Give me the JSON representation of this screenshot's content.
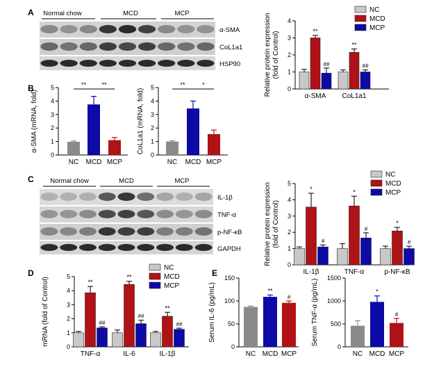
{
  "panels": {
    "A": "A",
    "B": "B",
    "C": "C",
    "D": "D",
    "E": "E"
  },
  "colors": {
    "NC": "#c8c8c8",
    "MCD": "#b01217",
    "MCP": "#0d0aa8",
    "grey": "#8a8a8a",
    "blue": "#0d0aa8",
    "red": "#b01217"
  },
  "blots": {
    "A": {
      "groups": [
        "Normal chow",
        "MCD",
        "MCP"
      ],
      "bands": [
        "α-SMA",
        "CoL1a1",
        "HSP90"
      ]
    },
    "C": {
      "groups": [
        "Normal chow",
        "MCD",
        "MCP"
      ],
      "bands": [
        "IL-1β",
        "TNF-α",
        "p-NF-κB",
        "GAPDH"
      ]
    }
  },
  "chart_data": [
    {
      "id": "A-bar",
      "type": "bar",
      "ylabel": "Relative protein expression\n(fold of Control)",
      "ylim": [
        0,
        4
      ],
      "yticks": [
        0,
        1,
        2,
        3,
        4
      ],
      "categories": [
        "α-SMA",
        "CoL1a1"
      ],
      "legend": [
        "NC",
        "MCD",
        "MCP"
      ],
      "series": [
        {
          "name": "NC",
          "values": [
            1.0,
            1.0
          ],
          "err": [
            0.15,
            0.12
          ],
          "ann": [
            "",
            ""
          ]
        },
        {
          "name": "MCD",
          "values": [
            3.0,
            2.15
          ],
          "err": [
            0.15,
            0.2
          ],
          "ann": [
            "**",
            "**"
          ]
        },
        {
          "name": "MCP",
          "values": [
            0.93,
            1.0
          ],
          "err": [
            0.3,
            0.12
          ],
          "ann": [
            "##",
            "##"
          ]
        }
      ]
    },
    {
      "id": "B-left",
      "type": "bar",
      "ylabel": "α-SMA (mRNA, fold)",
      "ylim": [
        0,
        5
      ],
      "yticks": [
        0,
        1,
        2,
        3,
        4,
        5
      ],
      "categories": [
        "NC",
        "MCD",
        "MCP"
      ],
      "values": [
        0.98,
        3.75,
        1.1
      ],
      "err": [
        0.06,
        0.6,
        0.2
      ],
      "bar_colors": [
        "grey",
        "blue",
        "red"
      ],
      "sig": [
        {
          "from": 0,
          "to": 1,
          "text": "**"
        },
        {
          "from": 1,
          "to": 2,
          "text": "**"
        }
      ]
    },
    {
      "id": "B-right",
      "type": "bar",
      "ylabel": "CoL1a1 (mRNA, fold)",
      "ylim": [
        0,
        5
      ],
      "yticks": [
        0,
        1,
        2,
        3,
        4,
        5
      ],
      "categories": [
        "NC",
        "MCD",
        "MCP"
      ],
      "values": [
        1.0,
        3.45,
        1.55
      ],
      "err": [
        0.06,
        0.55,
        0.3
      ],
      "bar_colors": [
        "grey",
        "blue",
        "red"
      ],
      "sig": [
        {
          "from": 0,
          "to": 1,
          "text": "**"
        },
        {
          "from": 1,
          "to": 2,
          "text": "*"
        }
      ]
    },
    {
      "id": "C-bar",
      "type": "bar",
      "ylabel": "Relative protein expression\n(fold of Control)",
      "ylim": [
        0,
        5
      ],
      "yticks": [
        0,
        1,
        2,
        3,
        4,
        5
      ],
      "categories": [
        "IL-1β",
        "TNF-α",
        "p-NF-κB"
      ],
      "legend": [
        "NC",
        "MCD",
        "MCP"
      ],
      "series": [
        {
          "name": "NC",
          "values": [
            1.0,
            1.0,
            1.0
          ],
          "err": [
            0.1,
            0.3,
            0.15
          ],
          "ann": [
            "",
            "",
            ""
          ]
        },
        {
          "name": "MCD",
          "values": [
            3.55,
            3.62,
            2.08
          ],
          "err": [
            0.85,
            0.6,
            0.22
          ],
          "ann": [
            "*",
            "*",
            "*"
          ]
        },
        {
          "name": "MCP",
          "values": [
            1.1,
            1.65,
            1.0
          ],
          "err": [
            0.12,
            0.32,
            0.15
          ],
          "ann": [
            "#",
            "#",
            "#"
          ]
        }
      ]
    },
    {
      "id": "D-bar",
      "type": "bar",
      "ylabel": "mRNA (fold of Control)",
      "ylim": [
        0,
        5
      ],
      "yticks": [
        0,
        1,
        2,
        3,
        4,
        5
      ],
      "categories": [
        "TNF-α",
        "IL-6",
        "IL-1β"
      ],
      "legend": [
        "NC",
        "MCD",
        "MCP"
      ],
      "series": [
        {
          "name": "NC",
          "values": [
            1.0,
            1.0,
            1.0
          ],
          "err": [
            0.1,
            0.2,
            0.1
          ],
          "ann": [
            "",
            "",
            ""
          ]
        },
        {
          "name": "MCD",
          "values": [
            3.85,
            4.45,
            2.18
          ],
          "err": [
            0.45,
            0.22,
            0.28
          ],
          "ann": [
            "**",
            "**",
            "**"
          ]
        },
        {
          "name": "MCP",
          "values": [
            1.35,
            1.65,
            1.25
          ],
          "err": [
            0.08,
            0.25,
            0.08
          ],
          "ann": [
            "##",
            "##",
            "##"
          ]
        }
      ]
    },
    {
      "id": "E-left",
      "type": "bar",
      "ylabel": "Serum IL-6 (pg/mL)",
      "ylim": [
        0,
        150
      ],
      "yticks": [
        0,
        50,
        100,
        150
      ],
      "categories": [
        "NC",
        "MCD",
        "MCP"
      ],
      "values": [
        87,
        109,
        96
      ],
      "err": [
        2,
        4,
        4
      ],
      "bar_colors": [
        "grey",
        "blue",
        "red"
      ],
      "ann": [
        "",
        "**",
        "#"
      ]
    },
    {
      "id": "E-right",
      "type": "bar",
      "ylabel": "Serum TNF-α (pg/mL)",
      "ylim": [
        0,
        1500
      ],
      "yticks": [
        0,
        500,
        1000,
        1500
      ],
      "categories": [
        "NC",
        "MCD",
        "MCP"
      ],
      "values": [
        460,
        980,
        520
      ],
      "err": [
        110,
        130,
        100
      ],
      "bar_colors": [
        "grey",
        "blue",
        "red"
      ],
      "ann": [
        "",
        "*",
        "#"
      ]
    }
  ]
}
